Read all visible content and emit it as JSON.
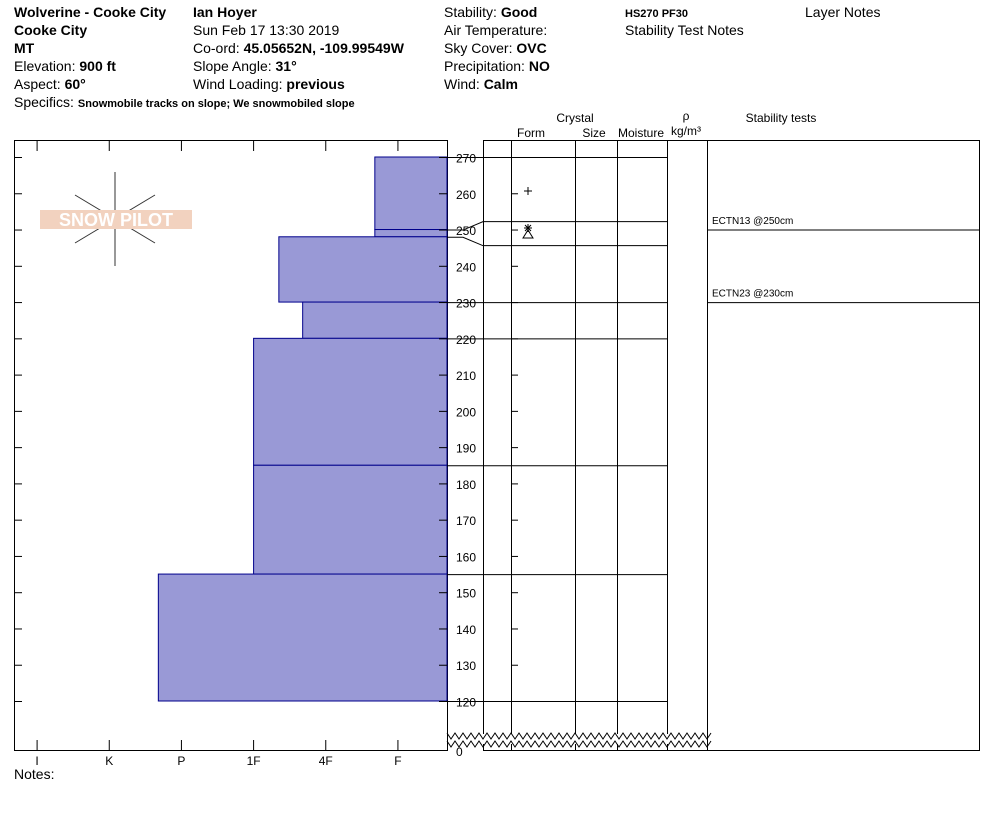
{
  "header": {
    "col1": [
      {
        "value": "Wolverine - Cooke City"
      },
      {
        "value": "Cooke City"
      },
      {
        "value": "MT"
      },
      {
        "label": "Elevation:",
        "value": "900 ft"
      },
      {
        "label": "Aspect:",
        "value": "60°"
      }
    ],
    "specifics": {
      "label": "Specifics:",
      "value": "Snowmobile tracks on slope; We snowmobiled slope"
    },
    "col2": [
      {
        "value": "Ian Hoyer"
      },
      {
        "label": "Sun Feb 17 13:30 2019"
      },
      {
        "label": "Co-ord:",
        "value": "45.05652N, -109.99549W"
      },
      {
        "label": "Slope Angle:",
        "value": "31°"
      },
      {
        "label": "Wind Loading:",
        "value": "previous"
      }
    ],
    "col3": [
      {
        "label": "Stability:",
        "value": "Good"
      },
      {
        "label": "Air Temperature:"
      },
      {
        "label": "Sky Cover:",
        "value": "OVC"
      },
      {
        "label": "Precipitation:",
        "value": "NO"
      },
      {
        "label": "Wind:",
        "value": "Calm"
      }
    ],
    "summary": "HS270 PF30",
    "stability_test_notes": "Stability Test Notes",
    "layer_notes": "Layer Notes"
  },
  "columns": {
    "crystal": "Crystal",
    "form": "Form",
    "size": "Size",
    "moisture": "Moisture",
    "rho": "ρ",
    "density_unit": "kg/m³",
    "stability_tests": "Stability tests"
  },
  "logo": "SNOW PILOT",
  "notes_label": "Notes:",
  "chart_data": {
    "type": "snow-profile",
    "ylim": [
      120,
      270
    ],
    "yticks": [
      120,
      130,
      140,
      150,
      160,
      170,
      180,
      190,
      200,
      210,
      220,
      230,
      240,
      250,
      260,
      270
    ],
    "base_tick": 0,
    "xlim": [
      0.32,
      6.32
    ],
    "xticks": [
      {
        "value": 6,
        "label": "I"
      },
      {
        "value": 5,
        "label": "K"
      },
      {
        "value": 4,
        "label": "P"
      },
      {
        "value": 3,
        "label": "1F"
      },
      {
        "value": 2,
        "label": "4F"
      },
      {
        "value": 1,
        "label": "F"
      }
    ],
    "color": "#9999d6",
    "layers": [
      {
        "top": 270,
        "bottom": 250,
        "hardness": 1.32
      },
      {
        "top": 250,
        "bottom": 248,
        "hardness": 1.32
      },
      {
        "top": 248,
        "bottom": 230,
        "hardness": 2.65
      },
      {
        "top": 230,
        "bottom": 220,
        "hardness": 2.32
      },
      {
        "top": 220,
        "bottom": 185,
        "hardness": 3
      },
      {
        "top": 185,
        "bottom": 155,
        "hardness": 3
      },
      {
        "top": 155,
        "bottom": 120,
        "hardness": 4.32
      }
    ],
    "stability_tests": [
      {
        "label": "ECTN13 @250cm",
        "height": 250
      },
      {
        "label": "ECTN23 @230cm",
        "height": 230
      }
    ]
  }
}
